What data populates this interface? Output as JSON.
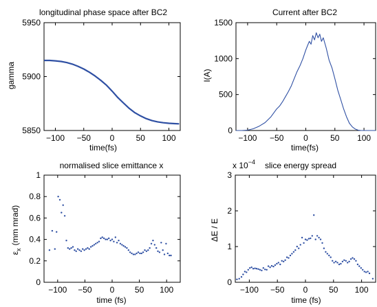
{
  "chart_data": [
    {
      "type": "line",
      "title": "longitudinal phase space after BC2",
      "xlabel": "time(fs)",
      "ylabel": "gamma",
      "xlim": [
        -120,
        120
      ],
      "ylim": [
        5850,
        5950
      ],
      "xticks": [
        -100,
        -50,
        0,
        50,
        100
      ],
      "yticks": [
        5850,
        5900,
        5950
      ],
      "color": "#2e4fa3",
      "series": [
        {
          "x": [
            -120,
            -110,
            -100,
            -90,
            -80,
            -70,
            -60,
            -50,
            -40,
            -30,
            -20,
            -10,
            0,
            10,
            20,
            30,
            40,
            50,
            60,
            70,
            80,
            90,
            100,
            110,
            118
          ],
          "values": [
            5915,
            5915,
            5914.6,
            5914,
            5913,
            5911.5,
            5909.5,
            5907,
            5904,
            5900.5,
            5896.5,
            5892,
            5886.5,
            5880.5,
            5875.5,
            5870.5,
            5866.5,
            5863.5,
            5861,
            5859.2,
            5858,
            5857.2,
            5856.7,
            5856.4,
            5856.2
          ]
        }
      ]
    },
    {
      "type": "line",
      "title": "Current after BC2",
      "xlabel": "time(fs)",
      "ylabel": "I(A)",
      "xlim": [
        -120,
        120
      ],
      "ylim": [
        0,
        1500
      ],
      "xticks": [
        -100,
        -50,
        0,
        50,
        100
      ],
      "yticks": [
        0,
        500,
        1000,
        1500
      ],
      "color": "#2e4fa3",
      "series": [
        {
          "x": [
            -120,
            -110,
            -100,
            -90,
            -80,
            -70,
            -60,
            -50,
            -45,
            -40,
            -35,
            -30,
            -25,
            -20,
            -15,
            -10,
            -5,
            0,
            3,
            6,
            9,
            12,
            15,
            18,
            21,
            24,
            27,
            30,
            35,
            40,
            45,
            50,
            55,
            60,
            65,
            70,
            75,
            80,
            85,
            90,
            95,
            100,
            105,
            110,
            115,
            120
          ],
          "values": [
            0,
            0,
            5,
            25,
            60,
            110,
            190,
            300,
            340,
            400,
            470,
            540,
            620,
            720,
            820,
            900,
            1000,
            1120,
            1180,
            1240,
            1200,
            1320,
            1260,
            1360,
            1290,
            1340,
            1240,
            1290,
            1150,
            980,
            870,
            720,
            560,
            430,
            300,
            190,
            100,
            50,
            20,
            5,
            0,
            0,
            0,
            0,
            0,
            0
          ]
        }
      ]
    },
    {
      "type": "scatter",
      "title": "normalised slice emittance x",
      "xlabel": "time (fs)",
      "ylabel": "ε_x (mm mrad)",
      "ylabel_main": "ε",
      "ylabel_sub": "x",
      "ylabel_rest": "(mm mrad)",
      "xlim": [
        -125,
        125
      ],
      "ylim": [
        0,
        1
      ],
      "xticks": [
        -100,
        -50,
        0,
        50,
        100
      ],
      "yticks": [
        0,
        0.2,
        0.4,
        0.6,
        0.8,
        1
      ],
      "color": "#2e4fa3",
      "series": [
        {
          "x": [
            -115,
            -110,
            -105,
            -102,
            -99,
            -96,
            -93,
            -90,
            -87,
            -84,
            -81,
            -78,
            -75,
            -72,
            -69,
            -66,
            -63,
            -60,
            -57,
            -54,
            -51,
            -48,
            -45,
            -42,
            -39,
            -36,
            -33,
            -30,
            -27,
            -24,
            -21,
            -18,
            -15,
            -12,
            -9,
            -6,
            -3,
            0,
            3,
            6,
            9,
            12,
            15,
            18,
            21,
            24,
            27,
            30,
            33,
            36,
            39,
            42,
            45,
            48,
            51,
            54,
            57,
            60,
            63,
            66,
            69,
            72,
            75,
            78,
            81,
            84,
            87,
            90,
            93,
            96,
            99,
            102,
            105,
            108
          ],
          "values": [
            0.3,
            0.48,
            0.31,
            0.47,
            0.8,
            0.77,
            0.65,
            0.72,
            0.62,
            0.39,
            0.32,
            0.31,
            0.32,
            0.33,
            0.3,
            0.29,
            0.31,
            0.3,
            0.29,
            0.31,
            0.3,
            0.31,
            0.32,
            0.31,
            0.33,
            0.34,
            0.35,
            0.36,
            0.37,
            0.38,
            0.41,
            0.42,
            0.41,
            0.4,
            0.4,
            0.41,
            0.39,
            0.4,
            0.38,
            0.42,
            0.37,
            0.39,
            0.36,
            0.35,
            0.34,
            0.33,
            0.32,
            0.3,
            0.28,
            0.27,
            0.26,
            0.26,
            0.27,
            0.28,
            0.27,
            0.27,
            0.28,
            0.3,
            0.29,
            0.3,
            0.32,
            0.36,
            0.39,
            0.35,
            0.32,
            0.29,
            0.28,
            0.37,
            0.3,
            0.26,
            0.36,
            0.27,
            0.25,
            0.25
          ]
        }
      ]
    },
    {
      "type": "scatter",
      "title": "slice energy spread",
      "exponent_label": "x 10",
      "exponent_power": "−4",
      "xlabel": "time (fs)",
      "ylabel": "ΔE / E",
      "xlim": [
        -125,
        125
      ],
      "ylim": [
        0,
        3
      ],
      "xticks": [
        -100,
        -50,
        0,
        50,
        100
      ],
      "yticks": [
        0,
        1,
        2,
        3
      ],
      "color": "#2e4fa3",
      "series": [
        {
          "x": [
            -122,
            -118,
            -114,
            -111,
            -108,
            -105,
            -102,
            -99,
            -96,
            -93,
            -90,
            -87,
            -84,
            -81,
            -78,
            -75,
            -72,
            -69,
            -66,
            -63,
            -60,
            -57,
            -54,
            -51,
            -48,
            -45,
            -42,
            -39,
            -36,
            -33,
            -30,
            -27,
            -24,
            -21,
            -18,
            -15,
            -12,
            -9,
            -6,
            -3,
            0,
            3,
            6,
            9,
            12,
            15,
            18,
            21,
            24,
            27,
            30,
            33,
            36,
            39,
            42,
            45,
            48,
            51,
            54,
            57,
            60,
            63,
            66,
            69,
            72,
            75,
            78,
            81,
            84,
            87,
            90,
            93,
            96,
            99,
            102,
            105,
            108,
            111,
            114,
            120
          ],
          "values": [
            0.08,
            0.1,
            0.15,
            0.22,
            0.3,
            0.28,
            0.35,
            0.4,
            0.42,
            0.38,
            0.39,
            0.38,
            0.37,
            0.35,
            0.33,
            0.4,
            0.36,
            0.35,
            0.45,
            0.42,
            0.46,
            0.44,
            0.48,
            0.52,
            0.55,
            0.5,
            0.6,
            0.58,
            0.62,
            0.7,
            0.68,
            0.75,
            0.8,
            0.85,
            0.9,
            1.0,
            0.95,
            1.05,
            1.25,
            1.1,
            1.2,
            1.18,
            1.22,
            1.23,
            1.3,
            1.88,
            1.2,
            1.3,
            1.25,
            1.2,
            1.1,
            0.95,
            0.85,
            0.8,
            0.75,
            0.7,
            0.6,
            0.55,
            0.58,
            0.55,
            0.5,
            0.52,
            0.58,
            0.62,
            0.6,
            0.55,
            0.58,
            0.65,
            0.68,
            0.65,
            0.6,
            0.5,
            0.45,
            0.4,
            0.35,
            0.3,
            0.28,
            0.3,
            0.25,
            0.1
          ]
        }
      ]
    }
  ]
}
